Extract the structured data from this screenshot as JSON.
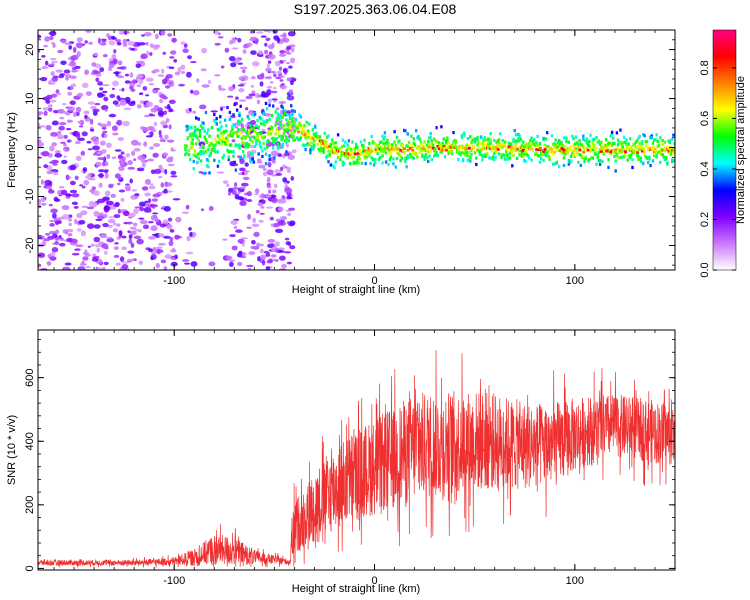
{
  "title": "S197.2025.363.06.04.E08",
  "colors": {
    "snr_line": "#ee3030",
    "colormap": [
      "#ffffff",
      "#cc77ff",
      "#7f00ff",
      "#0000ff",
      "#00ffff",
      "#00ff00",
      "#ffff00",
      "#ff8000",
      "#ff0000",
      "#ff0080"
    ]
  },
  "chart_data": [
    {
      "type": "heatmap",
      "name": "spectrogram",
      "xlabel": "Height of straight line (km)",
      "ylabel": "Frequency (Hz)",
      "xlim": [
        -168,
        150
      ],
      "ylim": [
        -25,
        24
      ],
      "xticks": [
        -100,
        0,
        100
      ],
      "xtick_labels": [
        "-100",
        "0",
        "100"
      ],
      "yticks": [
        -20,
        -10,
        0,
        10,
        20
      ],
      "ytick_labels": [
        "-20",
        "-10",
        "0",
        "10",
        "20"
      ],
      "colorbar": {
        "label": "Normalized spectral amplitude",
        "range": [
          0,
          0.95
        ],
        "ticks": [
          0.0,
          0.2,
          0.4,
          0.6,
          0.8
        ],
        "tick_labels": [
          "0.0",
          "0.2",
          "0.4",
          "0.6",
          "0.8"
        ]
      },
      "ridge": {
        "description_points_x": [
          -90,
          -70,
          -55,
          -45,
          -38,
          -30,
          -20,
          -10,
          0,
          10,
          30,
          60,
          90,
          120,
          150
        ],
        "frequency_hz": [
          0.5,
          2,
          3,
          4,
          3.5,
          1.5,
          -1,
          -1.5,
          0,
          -0.5,
          0,
          0,
          -0.5,
          -0.5,
          -0.5
        ]
      }
    },
    {
      "type": "line",
      "name": "snr",
      "xlabel": "Height of straight line (km)",
      "ylabel": "SNR (10 * v/v)",
      "xlim": [
        -168,
        150
      ],
      "ylim": [
        -5,
        750
      ],
      "xticks": [
        -100,
        0,
        100
      ],
      "xtick_labels": [
        "-100",
        "0",
        "100"
      ],
      "yticks": [
        0,
        200,
        400,
        600
      ],
      "ytick_labels": [
        "0",
        "200",
        "400",
        "600"
      ],
      "envelope": {
        "x": [
          -168,
          -120,
          -100,
          -90,
          -80,
          -70,
          -60,
          -50,
          -42,
          -41,
          -35,
          -28,
          -20,
          -10,
          0,
          10,
          20,
          30,
          40,
          50,
          60,
          70,
          80,
          90,
          100,
          110,
          120,
          130,
          140,
          150
        ],
        "mean": [
          18,
          18,
          22,
          35,
          60,
          55,
          35,
          28,
          20,
          120,
          160,
          210,
          250,
          290,
          320,
          350,
          380,
          390,
          395,
          400,
          400,
          390,
          385,
          390,
          420,
          440,
          450,
          440,
          430,
          420
        ],
        "spread": [
          10,
          10,
          14,
          30,
          55,
          50,
          25,
          15,
          10,
          90,
          110,
          130,
          150,
          160,
          170,
          180,
          190,
          190,
          185,
          180,
          170,
          160,
          150,
          150,
          130,
          120,
          110,
          110,
          110,
          110
        ]
      }
    }
  ]
}
